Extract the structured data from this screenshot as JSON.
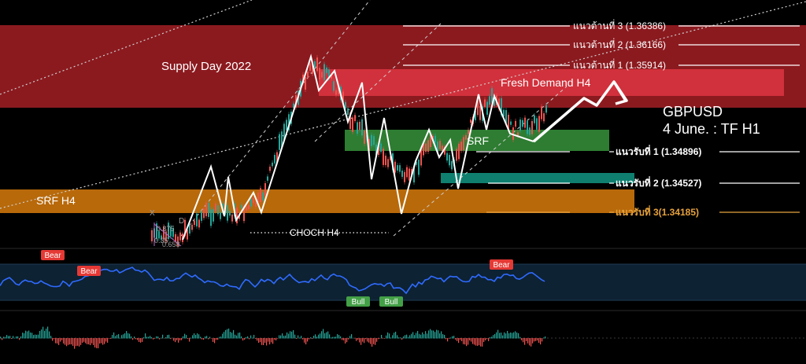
{
  "chart_data": {
    "type": "line",
    "symbol": "GBPUSD",
    "subtitle": "4 June. : TF H1",
    "price_range": [
      1.3405,
      1.3665
    ],
    "zones": [
      {
        "name": "Supply Day  2022",
        "low": 1.358,
        "high": 1.3657,
        "color": "#8b1a1f"
      },
      {
        "name": "Fresh Demand H4",
        "low": 1.357,
        "high": 1.36,
        "color": "#d1313c"
      },
      {
        "name": "SRF",
        "low": 1.3485,
        "high": 1.3501,
        "color": "#2e7d32"
      },
      {
        "name": "",
        "low": 1.3447,
        "high": 1.3455,
        "color": "#0f8070"
      },
      {
        "name": "SRF H4",
        "low": 1.3418,
        "high": 1.3435,
        "color": "#b8690a"
      }
    ],
    "levels": [
      {
        "label": "แนวต้านที่ 3 (1.36386)",
        "value": 1.36386,
        "color": "#ffffff"
      },
      {
        "label": "แนวต้านที่ 2 (1.36166)",
        "value": 1.36166,
        "color": "#ffffff"
      },
      {
        "label": "แนวต้านที่ 1 (1.35914)",
        "value": 1.35914,
        "color": "#ffffff"
      },
      {
        "label": "แนวรับที่ 1 (1.34896)",
        "value": 1.34896,
        "color": "#ffffff"
      },
      {
        "label": "แนวรับที่ 2 (1.34527)",
        "value": 1.34527,
        "color": "#ffffff"
      },
      {
        "label": "แนวรับที่ 3(1.34185)",
        "value": 1.34185,
        "color": "#e6a23c"
      }
    ],
    "annotations": [
      "CHOCH H4",
      "X",
      "D",
      "0.875",
      "0.35",
      "0.658"
    ],
    "oscillator_signals": [
      {
        "label": "Bear",
        "color": "#e53935"
      },
      {
        "label": "Bear",
        "color": "#e53935"
      },
      {
        "label": "Bull",
        "color": "#43a047"
      },
      {
        "label": "Bull",
        "color": "#43a047"
      },
      {
        "label": "Bear",
        "color": "#e53935"
      }
    ],
    "colors": {
      "up": "#26a69a",
      "down": "#ef5350",
      "osc_line": "#2f6bff",
      "path": "#ffffff"
    }
  }
}
